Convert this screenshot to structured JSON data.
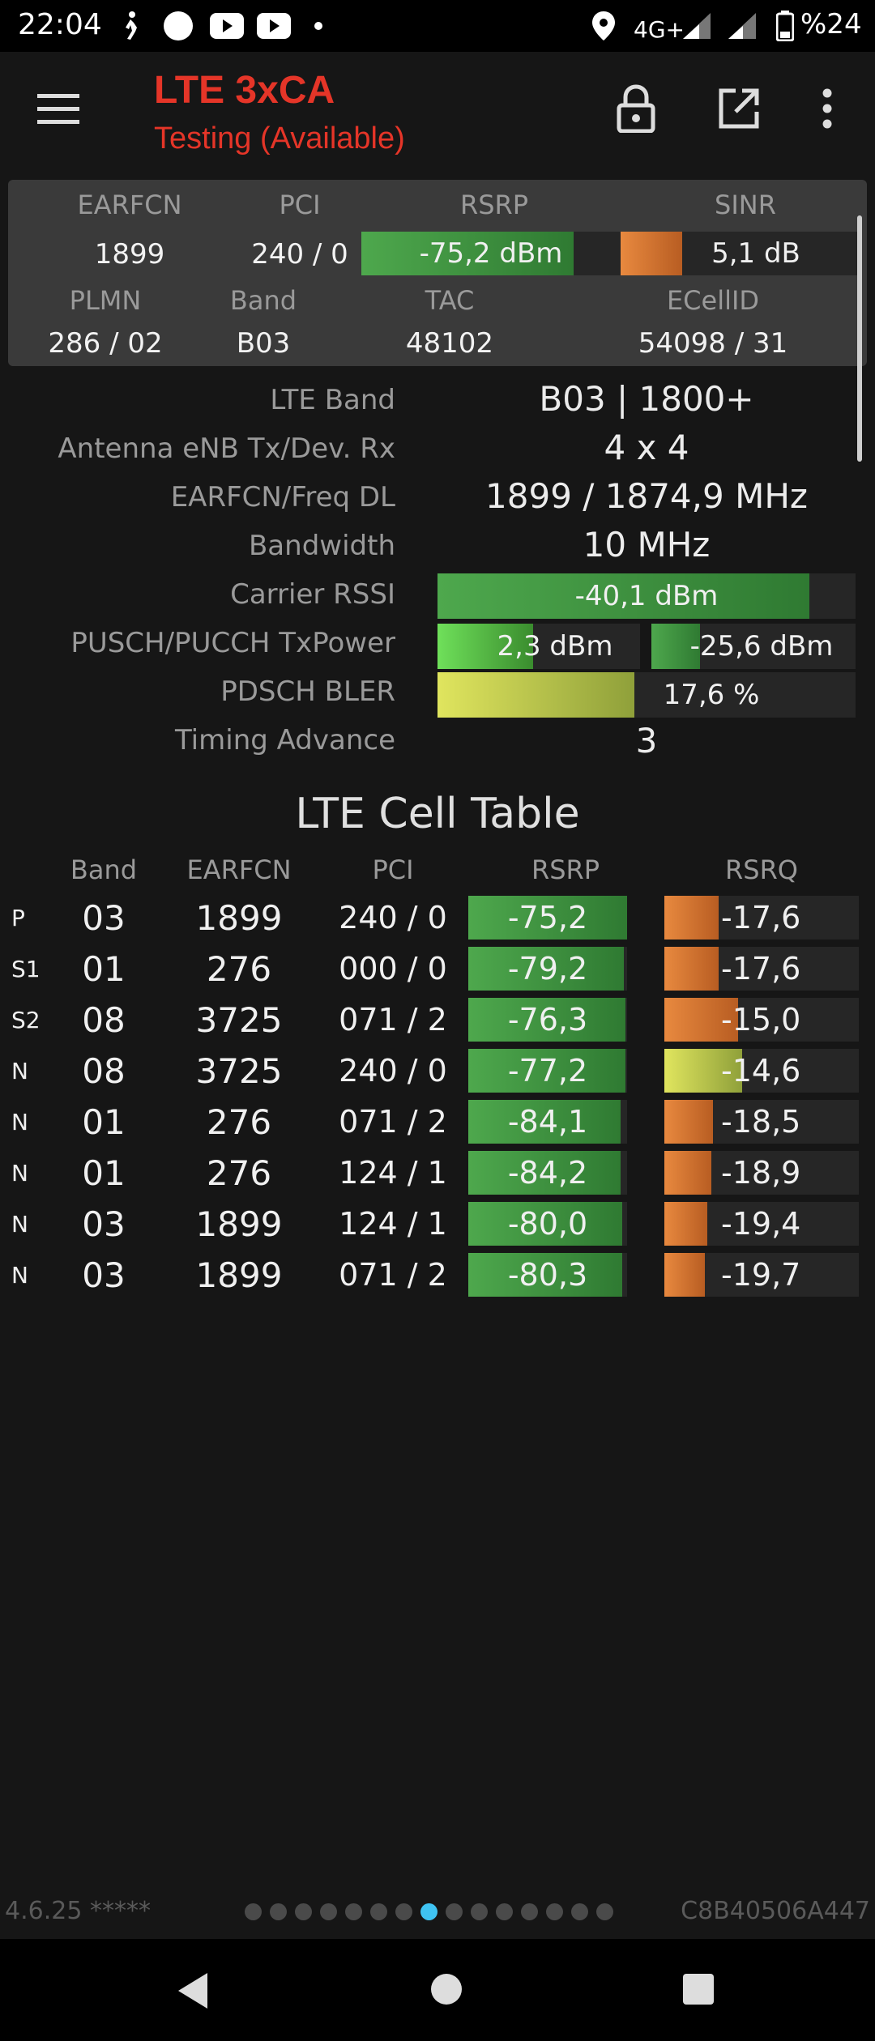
{
  "status_bar": {
    "time": "22:04",
    "network": "4G+",
    "battery": "%24",
    "icons": [
      "walk-icon",
      "circle-icon",
      "youtube-icon",
      "youtube-icon",
      "dot-icon",
      "location-icon",
      "signal-icon",
      "signal-icon",
      "battery-icon"
    ]
  },
  "app_bar": {
    "title": "LTE 3xCA",
    "subtitle": "Testing (Available)",
    "icons": [
      "menu-icon",
      "lock-icon",
      "external-link-icon",
      "more-vert-icon"
    ]
  },
  "summary": {
    "headers": {
      "earfcn": "EARFCN",
      "pci": "PCI",
      "rsrp": "RSRP",
      "sinr": "SINR",
      "plmn": "PLMN",
      "band": "Band",
      "tac": "TAC",
      "ecellid": "ECellID"
    },
    "earfcn": "1899",
    "pci": "240 / 0",
    "rsrp": {
      "label": "-75,2 dBm",
      "fill": 0.82
    },
    "sinr": {
      "label": "5,1 dB",
      "fill": 0.26
    },
    "plmn": "286 / 02",
    "band": "B03",
    "tac": "48102",
    "ecellid": "54098 / 31"
  },
  "details": [
    {
      "label": "LTE Band",
      "value": "B03 | 1800+"
    },
    {
      "label": "Antenna eNB Tx/Dev. Rx",
      "value": "4 x 4"
    },
    {
      "label": "EARFCN/Freq DL",
      "value": "1899 / 1874,9 MHz"
    },
    {
      "label": "Bandwidth",
      "value": "10 MHz"
    },
    {
      "label": "Carrier RSSI",
      "value": "-40,1 dBm",
      "fill": 0.89
    },
    {
      "label": "PUSCH/PUCCH TxPower",
      "value": "2,3 dBm",
      "value2": "-25,6 dBm",
      "fill": 0.47,
      "fill2": 0.24
    },
    {
      "label": "PDSCH BLER",
      "value": "17,6 %",
      "fill": 0.47
    },
    {
      "label": "Timing Advance",
      "value": "3"
    }
  ],
  "cell_table": {
    "title": "LTE Cell Table",
    "headers": {
      "band": "Band",
      "earfcn": "EARFCN",
      "pci": "PCI",
      "rsrp": "RSRP",
      "rsrq": "RSRQ"
    },
    "rows": [
      {
        "type": "P",
        "band": "03",
        "earfcn": "1899",
        "pci": "240 / 0",
        "rsrp": "-75,2",
        "rsrp_fill": 1.0,
        "rsrq": "-17,6",
        "rsrq_fill": 0.28,
        "rsrq_color": "orange"
      },
      {
        "type": "S1",
        "band": "01",
        "earfcn": "276",
        "pci": "000 / 0",
        "rsrp": "-79,2",
        "rsrp_fill": 0.98,
        "rsrq": "-17,6",
        "rsrq_fill": 0.28,
        "rsrq_color": "orange"
      },
      {
        "type": "S2",
        "band": "08",
        "earfcn": "3725",
        "pci": "071 / 2",
        "rsrp": "-76,3",
        "rsrp_fill": 0.99,
        "rsrq": "-15,0",
        "rsrq_fill": 0.38,
        "rsrq_color": "orange"
      },
      {
        "type": "N",
        "band": "08",
        "earfcn": "3725",
        "pci": "240 / 0",
        "rsrp": "-77,2",
        "rsrp_fill": 0.99,
        "rsrq": "-14,6",
        "rsrq_fill": 0.4,
        "rsrq_color": "yellow"
      },
      {
        "type": "N",
        "band": "01",
        "earfcn": "276",
        "pci": "071 / 2",
        "rsrp": "-84,1",
        "rsrp_fill": 0.96,
        "rsrq": "-18,5",
        "rsrq_fill": 0.25,
        "rsrq_color": "orange"
      },
      {
        "type": "N",
        "band": "01",
        "earfcn": "276",
        "pci": "124 / 1",
        "rsrp": "-84,2",
        "rsrp_fill": 0.96,
        "rsrq": "-18,9",
        "rsrq_fill": 0.24,
        "rsrq_color": "orange"
      },
      {
        "type": "N",
        "band": "03",
        "earfcn": "1899",
        "pci": "124 / 1",
        "rsrp": "-80,0",
        "rsrp_fill": 0.97,
        "rsrq": "-19,4",
        "rsrq_fill": 0.22,
        "rsrq_color": "orange"
      },
      {
        "type": "N",
        "band": "03",
        "earfcn": "1899",
        "pci": "071 / 2",
        "rsrp": "-80,3",
        "rsrp_fill": 0.97,
        "rsrq": "-19,7",
        "rsrq_fill": 0.21,
        "rsrq_color": "orange"
      }
    ]
  },
  "footer": {
    "version": "4.6.25 *****",
    "device_id": "C8B40506A447",
    "page_count": 15,
    "active_page": 7
  },
  "nav_bar": {
    "icons": [
      "back-icon",
      "home-icon",
      "recents-icon"
    ]
  }
}
